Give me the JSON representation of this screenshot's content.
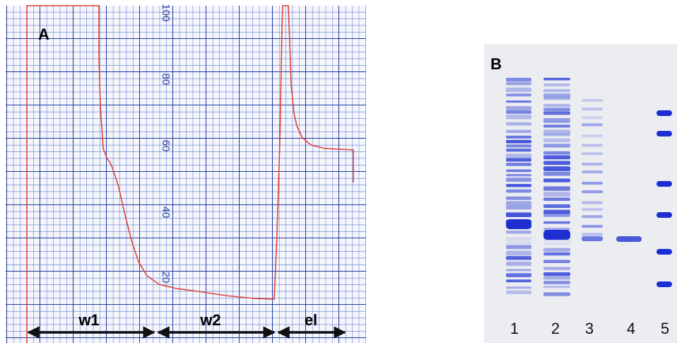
{
  "panel_a": {
    "label": "A",
    "scale_labels": [
      "100",
      "80",
      "60",
      "40",
      "20"
    ],
    "segments": [
      "w1",
      "w2",
      "el"
    ]
  },
  "panel_b": {
    "label": "B",
    "lanes": [
      "1",
      "2",
      "3",
      "4",
      "5"
    ]
  }
}
